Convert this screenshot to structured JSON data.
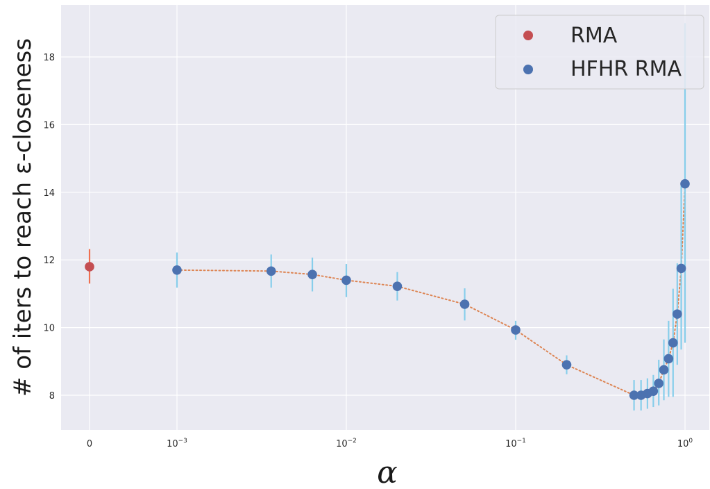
{
  "chart_data": {
    "type": "scatter",
    "title": "",
    "xlabel": "α",
    "ylabel": "# of iters to reach ε-closeness",
    "xscale": "symlog",
    "xlim": [
      0,
      1.15
    ],
    "ylim": [
      7,
      19.5
    ],
    "grid": true,
    "background": "#eaeaf2",
    "legend_position": "top-right",
    "x_ticks": [
      {
        "value": 0,
        "base": "0",
        "exp": ""
      },
      {
        "value": 0.001,
        "base": "10",
        "exp": "−3"
      },
      {
        "value": 0.01,
        "base": "10",
        "exp": "−2"
      },
      {
        "value": 0.1,
        "base": "10",
        "exp": "−1"
      },
      {
        "value": 1,
        "base": "10",
        "exp": "0"
      }
    ],
    "y_ticks": [
      "8",
      "10",
      "12",
      "14",
      "16",
      "18"
    ],
    "series": [
      {
        "name": "RMA",
        "color": "#c44e52",
        "error_color": "#f07050",
        "points": [
          {
            "x": 0,
            "y": 11.8,
            "err_low": 11.3,
            "err_high": 12.32
          }
        ]
      },
      {
        "name": "HFHR RMA",
        "color": "#4c72b0",
        "error_color": "#87ceeb",
        "line_color": "#dd8452",
        "points": [
          {
            "x": 0.001,
            "y": 11.7,
            "err_low": 11.18,
            "err_high": 12.22
          },
          {
            "x": 0.0036,
            "y": 11.67,
            "err_low": 11.18,
            "err_high": 12.16
          },
          {
            "x": 0.0063,
            "y": 11.57,
            "err_low": 11.07,
            "err_high": 12.07
          },
          {
            "x": 0.01,
            "y": 11.4,
            "err_low": 10.9,
            "err_high": 11.88
          },
          {
            "x": 0.02,
            "y": 11.22,
            "err_low": 10.8,
            "err_high": 11.64
          },
          {
            "x": 0.05,
            "y": 10.69,
            "err_low": 10.21,
            "err_high": 11.16
          },
          {
            "x": 0.1,
            "y": 9.93,
            "err_low": 9.64,
            "err_high": 10.2
          },
          {
            "x": 0.2,
            "y": 8.9,
            "err_low": 8.62,
            "err_high": 9.18
          },
          {
            "x": 0.5,
            "y": 8.0,
            "err_low": 7.55,
            "err_high": 8.45
          },
          {
            "x": 0.55,
            "y": 8.0,
            "err_low": 7.55,
            "err_high": 8.45
          },
          {
            "x": 0.6,
            "y": 8.05,
            "err_low": 7.6,
            "err_high": 8.5
          },
          {
            "x": 0.65,
            "y": 8.12,
            "err_low": 7.65,
            "err_high": 8.6
          },
          {
            "x": 0.7,
            "y": 8.35,
            "err_low": 7.7,
            "err_high": 9.05
          },
          {
            "x": 0.75,
            "y": 8.75,
            "err_low": 7.85,
            "err_high": 9.65
          },
          {
            "x": 0.8,
            "y": 9.08,
            "err_low": 7.95,
            "err_high": 10.2
          },
          {
            "x": 0.85,
            "y": 9.55,
            "err_low": 7.95,
            "err_high": 11.15
          },
          {
            "x": 0.9,
            "y": 10.4,
            "err_low": 8.9,
            "err_high": 11.9
          },
          {
            "x": 0.95,
            "y": 11.75,
            "err_low": 9.35,
            "err_high": 14.2
          },
          {
            "x": 1.0,
            "y": 14.25,
            "err_low": 9.55,
            "err_high": 19.0
          }
        ]
      }
    ]
  }
}
